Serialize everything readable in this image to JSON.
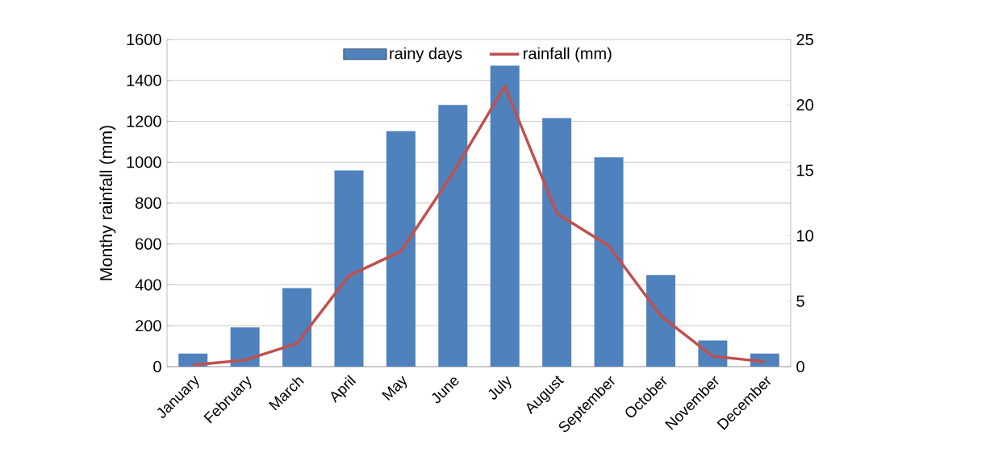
{
  "chart_data": {
    "type": "bar",
    "ylabel": "Monthy rainfall (mm)",
    "categories": [
      "January",
      "February",
      "March",
      "April",
      "May",
      "June",
      "July",
      "August",
      "September",
      "October",
      "November",
      "December"
    ],
    "series": [
      {
        "name": "rainy days",
        "axis": "y2",
        "color": "#4f81bd",
        "values": [
          1,
          3,
          6,
          15,
          18,
          20,
          23,
          19,
          16,
          7,
          2,
          1
        ]
      },
      {
        "name": "rainfall (mm)",
        "type": "line",
        "color": "#c0504d",
        "values": [
          8,
          32,
          114,
          445,
          564,
          946,
          1372,
          749,
          591,
          248,
          51,
          24
        ]
      }
    ],
    "ylim": [
      0,
      1600
    ],
    "yticks": [
      0,
      200,
      400,
      600,
      800,
      1000,
      1200,
      1400,
      1600
    ],
    "y2lim": [
      0,
      25
    ],
    "y2ticks": [
      0,
      5,
      10,
      15,
      20,
      25
    ],
    "grid": "y",
    "legend": "top",
    "marker": "none",
    "line_style": "solid"
  }
}
